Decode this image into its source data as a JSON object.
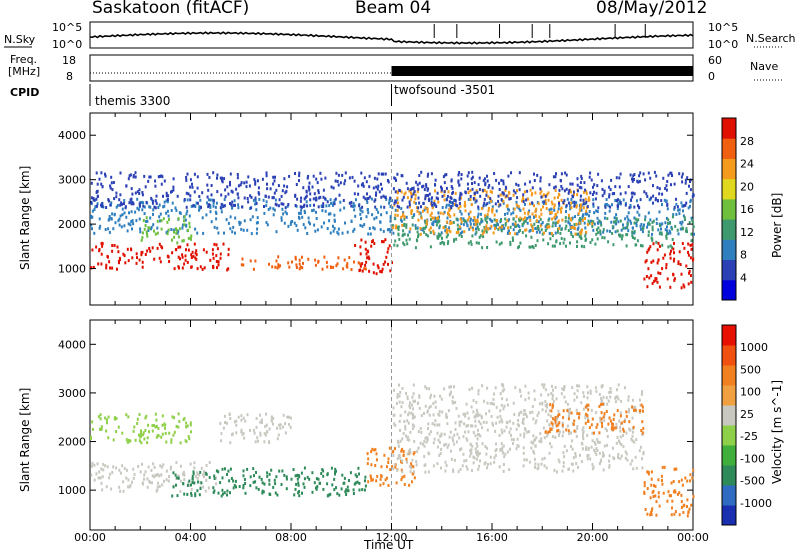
{
  "header": {
    "station": "Saskatoon (fitACF)",
    "beam": "Beam 04",
    "date": "08/May/2012"
  },
  "top_panels": {
    "nsky_label": "N.Sky",
    "nsky_ticks": [
      "10^5",
      "10^0"
    ],
    "nsearch_label": "N.Search",
    "nsearch_ticks": [
      "10^5",
      "10^0"
    ],
    "freq_label_1": "Freq.",
    "freq_label_2": "[MHz]",
    "freq_ticks": [
      "18",
      "8"
    ],
    "nave_label": "Nave",
    "nave_ticks": [
      "60",
      "0"
    ],
    "cpid_label": "CPID",
    "cpid_segments": [
      {
        "name": "themis 3300",
        "start_hour": 0
      },
      {
        "name": "twofsound -3501",
        "start_hour": 12
      }
    ]
  },
  "chart_data": [
    {
      "type": "heatmap",
      "title": "",
      "xlabel": "Time UT",
      "ylabel": "Slant Range [km]",
      "xlim": [
        0,
        24
      ],
      "ylim": [
        180,
        4500
      ],
      "yticks": [
        "1000",
        "2000",
        "3000",
        "4000"
      ],
      "colorbar_label": "Power [dB]",
      "colorbar_ticks": [
        "28",
        "24",
        "20",
        "16",
        "12",
        "8",
        "4"
      ],
      "colorbar_colors": [
        "#0000dd",
        "#2a40b4",
        "#2f7fbf",
        "#3e9a6e",
        "#6dbf3c",
        "#e0d81e",
        "#f49a1c",
        "#f06010",
        "#e01000"
      ]
    },
    {
      "type": "heatmap",
      "title": "",
      "xlabel": "Time UT",
      "ylabel": "Slant Range [km]",
      "xlim": [
        0,
        24
      ],
      "ylim": [
        180,
        4500
      ],
      "yticks": [
        "1000",
        "2000",
        "3000",
        "4000"
      ],
      "colorbar_label": "Velocity [m s^-1]",
      "colorbar_ticks": [
        "1000",
        "500",
        "100",
        "25",
        "-25",
        "-100",
        "-500",
        "-1000"
      ],
      "colorbar_colors": [
        "#1a2fb0",
        "#2f6bc0",
        "#2f8a5a",
        "#3fae3a",
        "#8fd04a",
        "#c8c8c0",
        "#f0a040",
        "#f08020",
        "#f05010",
        "#e81000"
      ]
    }
  ],
  "x_axis": {
    "ticks": [
      "00:00",
      "04:00",
      "08:00",
      "12:00",
      "16:00",
      "20:00",
      "00:00"
    ],
    "label": "Time UT"
  }
}
